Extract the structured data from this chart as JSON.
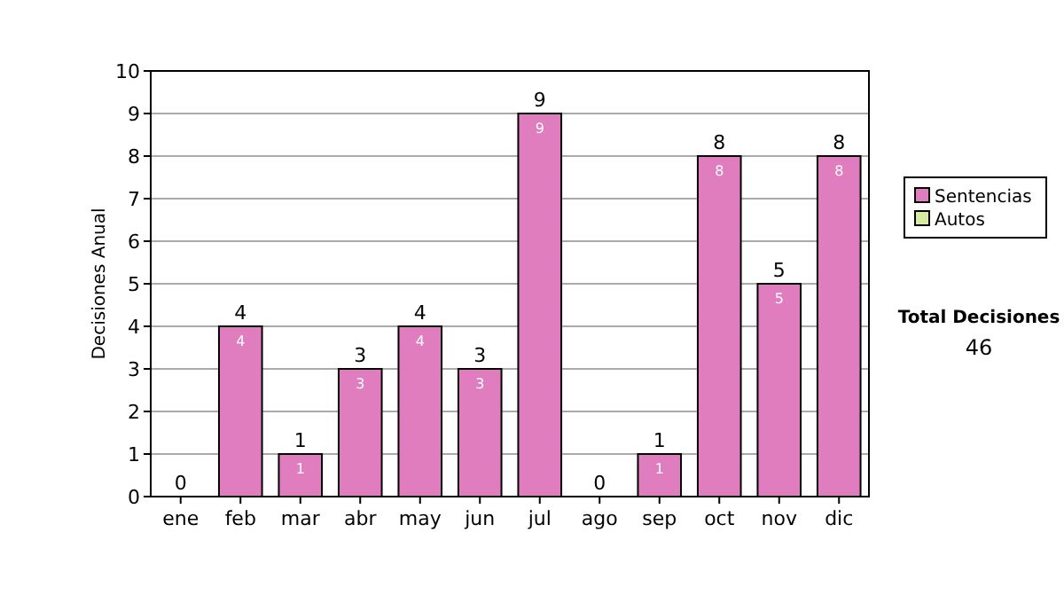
{
  "chart_data": {
    "type": "bar",
    "ylabel": "Decisiones Anual",
    "categories": [
      "ene",
      "feb",
      "mar",
      "abr",
      "may",
      "jun",
      "jul",
      "ago",
      "sep",
      "oct",
      "nov",
      "dic"
    ],
    "series": [
      {
        "name": "Sentencias",
        "color": "#e07dbf",
        "values": [
          0,
          4,
          1,
          3,
          4,
          3,
          9,
          0,
          1,
          8,
          5,
          8
        ],
        "value_labels": [
          null,
          "4",
          "1",
          "3",
          "4",
          "3",
          "9",
          null,
          "1",
          "8",
          "5",
          "8"
        ]
      },
      {
        "name": "Autos",
        "color": "#d6eca0",
        "values": [
          0,
          0,
          0,
          0,
          0,
          0,
          0,
          0,
          0,
          0,
          0,
          0
        ]
      }
    ],
    "stacked": true,
    "totals": [
      "0",
      "4",
      "1",
      "3",
      "4",
      "3",
      "9",
      "0",
      "1",
      "8",
      "5",
      "8"
    ],
    "ylim": [
      0,
      10
    ],
    "yticks": [
      0,
      1,
      2,
      3,
      4,
      5,
      6,
      7,
      8,
      9,
      10
    ],
    "grid": "y",
    "legend": "right",
    "annotations": [
      "Total Decisiones",
      "46"
    ]
  }
}
